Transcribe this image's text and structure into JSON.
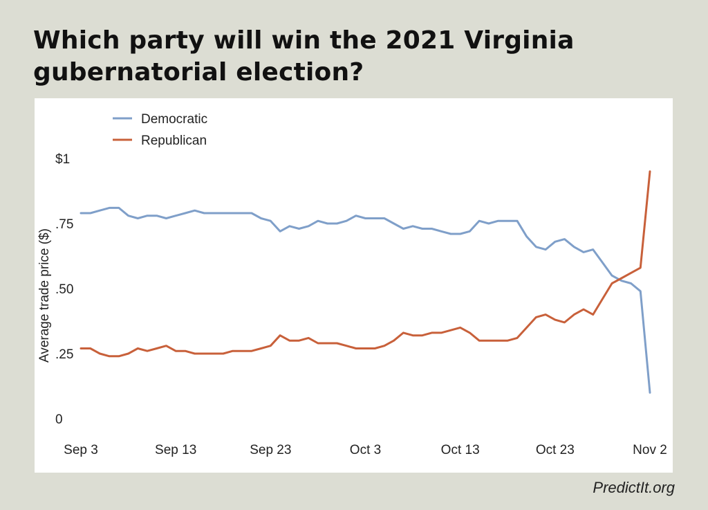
{
  "chart_data": {
    "type": "line",
    "title": "Which party will win the 2021 Virginia gubernatorial election?",
    "ylabel": "Average trade price ($)",
    "xlabel": "",
    "ylim": [
      0,
      1
    ],
    "y_ticks": [
      {
        "value": 0,
        "label": "0"
      },
      {
        "value": 0.25,
        "label": ".25"
      },
      {
        "value": 0.5,
        "label": ".50"
      },
      {
        "value": 0.75,
        "label": ".75"
      },
      {
        "value": 1,
        "label": "$1"
      }
    ],
    "x_ticks": [
      {
        "day": 0,
        "label": "Sep 3"
      },
      {
        "day": 10,
        "label": "Sep 13"
      },
      {
        "day": 20,
        "label": "Sep 23"
      },
      {
        "day": 30,
        "label": "Oct 3"
      },
      {
        "day": 40,
        "label": "Oct 13"
      },
      {
        "day": 50,
        "label": "Oct 23"
      },
      {
        "day": 60,
        "label": "Nov 2"
      }
    ],
    "x_dates": [
      "Sep 3",
      "Sep 4",
      "Sep 5",
      "Sep 6",
      "Sep 7",
      "Sep 8",
      "Sep 9",
      "Sep 10",
      "Sep 11",
      "Sep 12",
      "Sep 13",
      "Sep 14",
      "Sep 15",
      "Sep 16",
      "Sep 17",
      "Sep 18",
      "Sep 19",
      "Sep 20",
      "Sep 21",
      "Sep 22",
      "Sep 23",
      "Sep 24",
      "Sep 25",
      "Sep 26",
      "Sep 27",
      "Sep 28",
      "Sep 29",
      "Sep 30",
      "Oct 1",
      "Oct 2",
      "Oct 3",
      "Oct 4",
      "Oct 5",
      "Oct 6",
      "Oct 7",
      "Oct 8",
      "Oct 9",
      "Oct 10",
      "Oct 11",
      "Oct 12",
      "Oct 13",
      "Oct 14",
      "Oct 15",
      "Oct 16",
      "Oct 17",
      "Oct 18",
      "Oct 19",
      "Oct 20",
      "Oct 21",
      "Oct 22",
      "Oct 23",
      "Oct 24",
      "Oct 25",
      "Oct 26",
      "Oct 27",
      "Oct 28",
      "Oct 29",
      "Oct 30",
      "Oct 31",
      "Nov 1",
      "Nov 2"
    ],
    "series": [
      {
        "name": "Democratic",
        "color": "#7f9fc9",
        "values": [
          0.79,
          0.79,
          0.8,
          0.81,
          0.81,
          0.78,
          0.77,
          0.78,
          0.78,
          0.77,
          0.78,
          0.79,
          0.8,
          0.79,
          0.79,
          0.79,
          0.79,
          0.79,
          0.79,
          0.77,
          0.76,
          0.72,
          0.74,
          0.73,
          0.74,
          0.76,
          0.75,
          0.75,
          0.76,
          0.78,
          0.77,
          0.77,
          0.77,
          0.75,
          0.73,
          0.74,
          0.73,
          0.73,
          0.72,
          0.71,
          0.71,
          0.72,
          0.76,
          0.75,
          0.76,
          0.76,
          0.76,
          0.7,
          0.66,
          0.65,
          0.68,
          0.69,
          0.66,
          0.64,
          0.65,
          0.6,
          0.55,
          0.53,
          0.52,
          0.49,
          0.1
        ]
      },
      {
        "name": "Republican",
        "color": "#c8603a",
        "values": [
          0.27,
          0.27,
          0.25,
          0.24,
          0.24,
          0.25,
          0.27,
          0.26,
          0.27,
          0.28,
          0.26,
          0.26,
          0.25,
          0.25,
          0.25,
          0.25,
          0.26,
          0.26,
          0.26,
          0.27,
          0.28,
          0.32,
          0.3,
          0.3,
          0.31,
          0.29,
          0.29,
          0.29,
          0.28,
          0.27,
          0.27,
          0.27,
          0.28,
          0.3,
          0.33,
          0.32,
          0.32,
          0.33,
          0.33,
          0.34,
          0.35,
          0.33,
          0.3,
          0.3,
          0.3,
          0.3,
          0.31,
          0.35,
          0.39,
          0.4,
          0.38,
          0.37,
          0.4,
          0.42,
          0.4,
          0.46,
          0.52,
          0.54,
          0.56,
          0.58,
          0.95
        ]
      }
    ],
    "legend_position": "top-left",
    "grid": false
  },
  "title": "Which party will win the 2021 Virginia gubernatorial election?",
  "credit": "PredictIt.org"
}
